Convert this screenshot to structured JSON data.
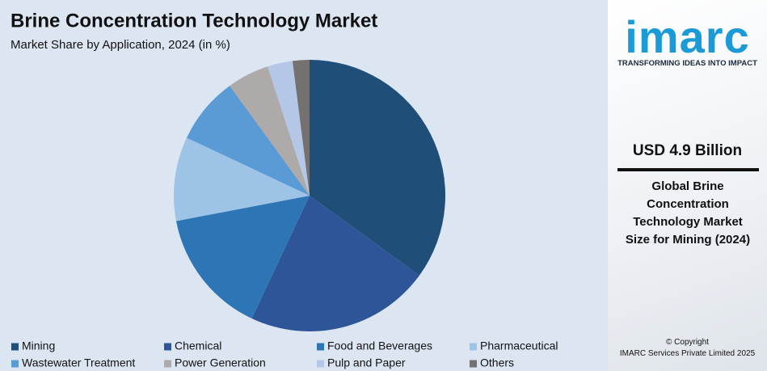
{
  "chart_data": {
    "type": "pie",
    "title": "Brine Concentration Technology Market",
    "subtitle": "Market Share by Application, 2024 (in %)",
    "categories": [
      "Mining",
      "Chemical",
      "Food and Beverages",
      "Pharmaceutical",
      "Wastewater Treatment",
      "Power Generation",
      "Pulp and Paper",
      "Others"
    ],
    "values": [
      35,
      22,
      15,
      10,
      8,
      5,
      3,
      2
    ],
    "colors": [
      "#1f4e79",
      "#2e5597",
      "#2e75b6",
      "#9dc3e6",
      "#5b9bd5",
      "#aeaaaa",
      "#b4c7e7",
      "#757171"
    ],
    "legend": "bottom"
  },
  "side_panel": {
    "logo": "imarc",
    "tagline": "TRANSFORMING IDEAS INTO IMPACT",
    "headline": "USD 4.9 Billion",
    "description": "Global Brine Concentration Technology Market Size for Mining (2024)",
    "copyright": "© Copyright",
    "company": "IMARC Services Private Limited 2025"
  }
}
